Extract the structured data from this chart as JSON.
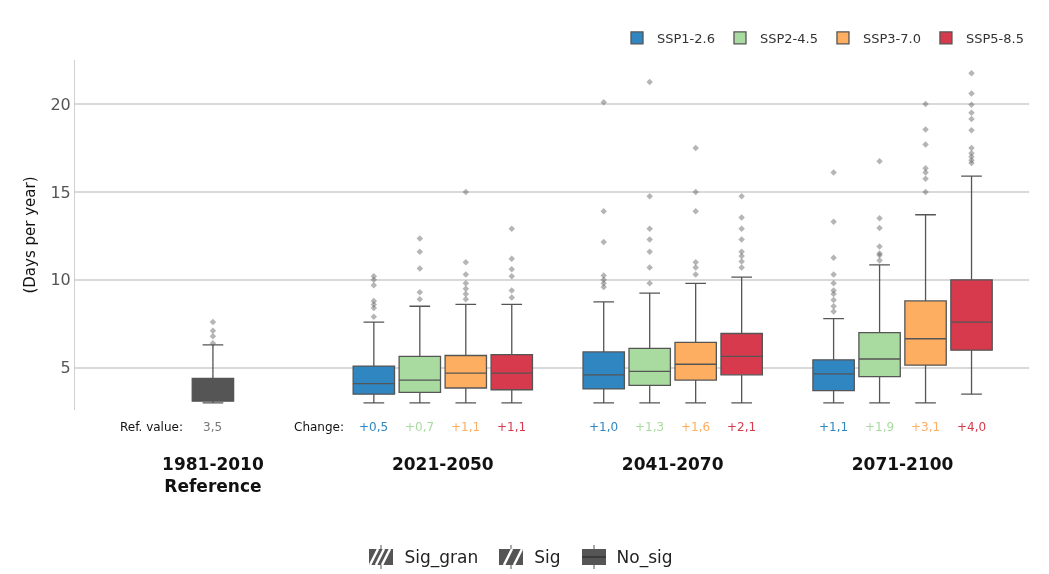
{
  "chart_data": {
    "type": "box",
    "ylabel": "(Days per year)",
    "categories": [
      "1981-2010\nReference",
      "2021-2050",
      "2041-2070",
      "2071-2100"
    ],
    "ylim": [
      2.6,
      22.5
    ],
    "yticks": [
      5,
      10,
      15,
      20
    ],
    "grid": "y",
    "legend": "top right",
    "marker": "diamond",
    "annotations": [
      "Ref. value:",
      "Change:",
      "Sig_gran",
      "Sig",
      "No_sig"
    ],
    "series": [
      {
        "color": "#555555",
        "value_labels": [
          "3,5",
          null,
          null,
          null
        ],
        "boxes": [
          {
            "low": 3.0,
            "q1": 3.1,
            "median": 3.6,
            "q3": 4.4,
            "high": 6.3,
            "outliers": [
              7.6,
              7.1,
              6.8,
              6.4
            ]
          },
          null,
          null,
          null
        ]
      },
      {
        "name": "SSP1-2.6",
        "color": "#3086c0",
        "value_labels": [
          null,
          "+0,5",
          "+1,0",
          "+1,1"
        ],
        "boxes": [
          null,
          {
            "low": 3.0,
            "q1": 3.5,
            "median": 4.1,
            "q3": 5.1,
            "high": 7.6,
            "outliers": [
              10.2,
              10.0,
              9.7,
              8.8,
              8.6,
              8.4,
              7.9
            ]
          },
          {
            "low": 3.0,
            "q1": 3.8,
            "median": 4.6,
            "q3": 5.9,
            "high": 8.75,
            "outliers": [
              20.1,
              13.9,
              12.15,
              10.25,
              10.0,
              9.8,
              9.6
            ]
          },
          {
            "low": 3.0,
            "q1": 3.7,
            "median": 4.65,
            "q3": 5.45,
            "high": 7.8,
            "outliers": [
              16.1,
              13.3,
              11.25,
              10.3,
              9.8,
              9.4,
              9.2,
              8.85,
              8.5,
              8.2
            ]
          }
        ]
      },
      {
        "name": "SSP2-4.5",
        "color": "#a9dba0",
        "value_labels": [
          null,
          "+0,7",
          "+1,3",
          "+1,9"
        ],
        "boxes": [
          null,
          {
            "low": 3.0,
            "q1": 3.6,
            "median": 4.3,
            "q3": 5.65,
            "high": 8.5,
            "outliers": [
              12.35,
              11.6,
              10.65,
              9.3,
              8.9
            ]
          },
          {
            "low": 3.0,
            "q1": 4.0,
            "median": 4.8,
            "q3": 6.1,
            "high": 9.25,
            "outliers": [
              21.25,
              14.75,
              12.9,
              12.3,
              11.6,
              10.7,
              9.8
            ]
          },
          {
            "low": 3.0,
            "q1": 4.5,
            "median": 5.5,
            "q3": 7.0,
            "high": 10.85,
            "outliers": [
              16.75,
              13.5,
              12.95,
              11.9,
              11.5,
              11.4,
              11.1
            ]
          }
        ]
      },
      {
        "name": "SSP3-7.0",
        "color": "#fdae61",
        "value_labels": [
          null,
          "+1,1",
          "+1,6",
          "+3,1"
        ],
        "boxes": [
          null,
          {
            "low": 3.0,
            "q1": 3.85,
            "median": 4.7,
            "q3": 5.7,
            "high": 8.6,
            "outliers": [
              15.0,
              11.0,
              10.3,
              9.8,
              9.5,
              9.2,
              8.9
            ]
          },
          {
            "low": 3.0,
            "q1": 4.3,
            "median": 5.2,
            "q3": 6.45,
            "high": 9.8,
            "outliers": [
              17.5,
              15.0,
              13.9,
              11.0,
              10.7,
              10.3
            ]
          },
          {
            "low": 3.0,
            "q1": 5.15,
            "median": 6.65,
            "q3": 8.8,
            "high": 13.7,
            "outliers": [
              20.0,
              18.55,
              17.7,
              16.35,
              16.1,
              15.75,
              15.0
            ]
          }
        ]
      },
      {
        "name": "SSP5-8.5",
        "color": "#d63a4c",
        "value_labels": [
          null,
          "+1,1",
          "+2,1",
          "+4,0"
        ],
        "boxes": [
          null,
          {
            "low": 3.0,
            "q1": 3.75,
            "median": 4.7,
            "q3": 5.75,
            "high": 8.6,
            "outliers": [
              12.9,
              11.2,
              10.6,
              10.2,
              9.4,
              9.0
            ]
          },
          {
            "low": 3.0,
            "q1": 4.6,
            "median": 5.65,
            "q3": 6.95,
            "high": 10.15,
            "outliers": [
              14.75,
              13.55,
              12.9,
              12.3,
              11.6,
              11.35,
              11.05,
              10.7
            ]
          },
          {
            "low": 3.5,
            "q1": 6.0,
            "median": 7.6,
            "q3": 10.0,
            "high": 15.9,
            "outliers": [
              21.75,
              20.6,
              19.95,
              19.5,
              19.15,
              18.5,
              17.5,
              17.2,
              17.0,
              16.8,
              16.65
            ]
          }
        ]
      }
    ]
  }
}
